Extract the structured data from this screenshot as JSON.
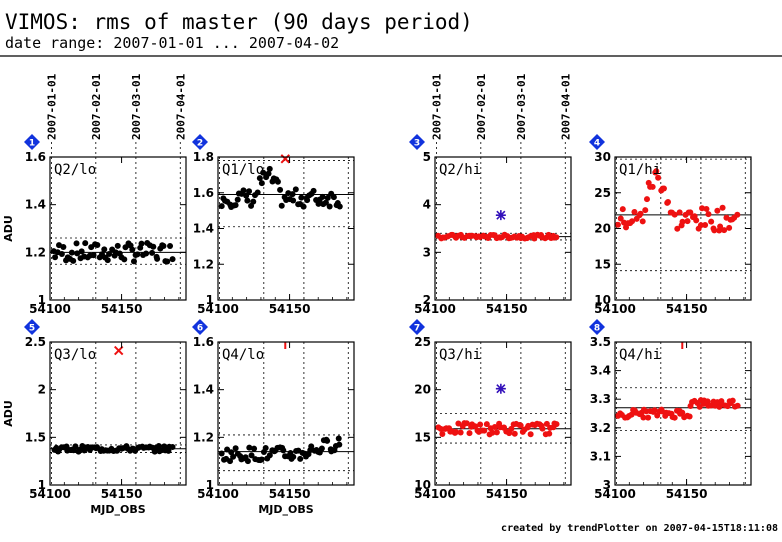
{
  "header": {
    "title": "VIMOS: rms of master (90 days period)",
    "subtitle": "date range: 2007-01-01 ... 2007-04-02"
  },
  "footer": "created by trendPlotter on 2007-04-15T18:11:08",
  "colors": {
    "black_points": "#000000",
    "red_points": "#ee1111",
    "blue_star": "#3311bb",
    "badge": "#1133dd"
  },
  "chart_data": {
    "type": "scatter",
    "xlabel": "MJD_OBS",
    "ylabel": "ADU",
    "xlim": [
      54100,
      54195
    ],
    "x_ticks": [
      54100,
      54150
    ],
    "x_ticks_labels": [
      "54100",
      "54150"
    ],
    "date_ticks": [
      {
        "label": "2007-01-01",
        "x": 54101
      },
      {
        "label": "2007-02-01",
        "x": 54132
      },
      {
        "label": "2007-03-01",
        "x": 54160
      },
      {
        "label": "2007-04-01",
        "x": 54191
      }
    ],
    "panels": [
      {
        "number": "1",
        "label": "Q2/lo",
        "ylim": [
          1,
          1.6
        ],
        "y_ticks": [
          "1",
          "1.2",
          "1.4",
          "1.6"
        ],
        "color": "black",
        "mean": 1.2,
        "band": [
          1.15,
          1.26
        ],
        "base": 1.2,
        "amp": 0.04,
        "trend": "flat"
      },
      {
        "number": "2",
        "label": "Q1/lo",
        "ylim": [
          1,
          1.8
        ],
        "y_ticks": [
          "1",
          "1.2",
          "1.4",
          "1.6",
          "1.8"
        ],
        "color": "black",
        "mean": 1.59,
        "band": [
          1.41,
          1.78
        ],
        "base": 1.57,
        "amp": 0.05,
        "trend": "bump",
        "outlier": {
          "x": 54147,
          "y": 1.79,
          "kind": "red-x"
        }
      },
      {
        "number": "3",
        "label": "Q2/hi",
        "ylim": [
          2,
          5
        ],
        "y_ticks": [
          "2",
          "3",
          "4",
          "5"
        ],
        "color": "red",
        "mean": 3.33,
        "band": [
          3.26,
          3.4
        ],
        "base": 3.33,
        "amp": 0.04,
        "trend": "flat",
        "outlier": {
          "x": 54146,
          "y": 3.78,
          "kind": "blue-star"
        }
      },
      {
        "number": "4",
        "label": "Q1/hi",
        "ylim": [
          10,
          30
        ],
        "y_ticks": [
          "10",
          "15",
          "20",
          "25",
          "30"
        ],
        "color": "red",
        "mean": 21.9,
        "band": [
          14.1,
          29.7
        ],
        "base": 21.3,
        "amp": 1.6,
        "trend": "bump4"
      },
      {
        "number": "5",
        "label": "Q3/lo",
        "ylim": [
          1,
          2.5
        ],
        "y_ticks": [
          "1",
          "1.5",
          "2",
          "2.5"
        ],
        "color": "black",
        "mean": 1.38,
        "band": [
          1.34,
          1.42
        ],
        "base": 1.38,
        "amp": 0.03,
        "trend": "flat",
        "outlier": {
          "x": 54148,
          "y": 2.41,
          "kind": "red-x"
        }
      },
      {
        "number": "6",
        "label": "Q4/lo",
        "ylim": [
          1,
          1.6
        ],
        "y_ticks": [
          "1",
          "1.2",
          "1.4",
          "1.6"
        ],
        "color": "black",
        "mean": 1.14,
        "band": [
          1.06,
          1.21
        ],
        "base": 1.13,
        "amp": 0.03,
        "trend": "rise",
        "outlier": {
          "x": 54147,
          "y": 1.6,
          "kind": "red-bar"
        }
      },
      {
        "number": "7",
        "label": "Q3/hi",
        "ylim": [
          10,
          25
        ],
        "y_ticks": [
          "10",
          "15",
          "20",
          "25"
        ],
        "color": "red",
        "mean": 15.9,
        "band": [
          14.4,
          17.5
        ],
        "base": 15.9,
        "amp": 0.6,
        "trend": "flat",
        "outlier": {
          "x": 54146,
          "y": 20.1,
          "kind": "blue-star"
        }
      },
      {
        "number": "8",
        "label": "Q4/hi",
        "ylim": [
          3,
          3.5
        ],
        "y_ticks": [
          "3",
          "3.1",
          "3.2",
          "3.3",
          "3.4",
          "3.5"
        ],
        "color": "red",
        "mean": 3.27,
        "band": [
          3.19,
          3.34
        ],
        "base": 3.25,
        "amp": 0.015,
        "trend": "step",
        "outlier": {
          "x": 54147,
          "y": 3.5,
          "kind": "red-bar"
        }
      }
    ]
  }
}
